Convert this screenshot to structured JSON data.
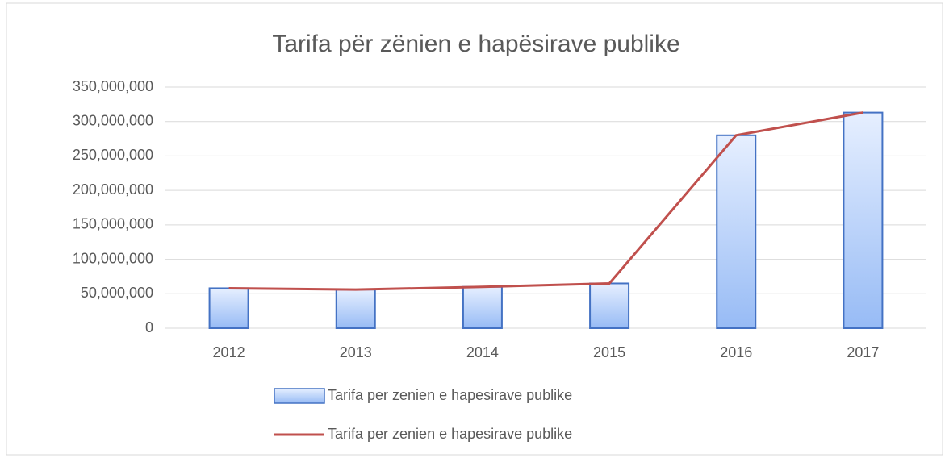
{
  "chart_data": {
    "type": "combo",
    "title": "Tarifa për zënien e hapësirave publike",
    "categories": [
      "2012",
      "2013",
      "2014",
      "2015",
      "2016",
      "2017"
    ],
    "series": [
      {
        "name": "Tarifa per zenien e hapesirave publike",
        "type": "bar",
        "color": "#4472c4",
        "values": [
          58000000,
          56000000,
          60000000,
          65000000,
          280000000,
          313000000
        ]
      },
      {
        "name": "Tarifa per zenien e hapesirave publike",
        "type": "line",
        "color": "#c0504d",
        "values": [
          58000000,
          56000000,
          60000000,
          65000000,
          280000000,
          313000000
        ]
      }
    ],
    "ylim": [
      0,
      350000000
    ],
    "yticks": [
      0,
      {
        "value": 50000000,
        "label": "50,000,000"
      },
      {
        "value": 100000000,
        "label": "100,000,000"
      },
      {
        "value": 150000000,
        "label": "150,000,000"
      },
      {
        "value": 200000000,
        "label": "200,000,000"
      },
      {
        "value": 250000000,
        "label": "250,000,000"
      },
      {
        "value": 300000000,
        "label": "300,000,000"
      },
      {
        "value": 350000000,
        "label": "350,000,000"
      }
    ],
    "grid": true
  }
}
